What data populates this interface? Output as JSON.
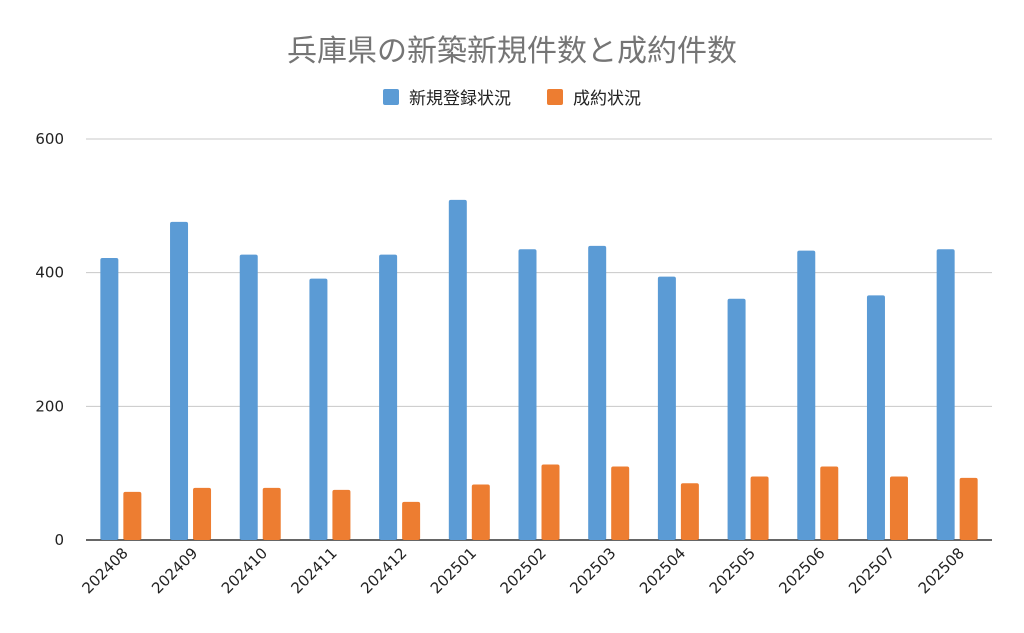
{
  "chart_data": {
    "type": "bar",
    "title": "兵庫県の新築新規件数と成約件数",
    "xlabel": "",
    "ylabel": "",
    "ylim": [
      0,
      600
    ],
    "yticks": [
      0,
      200,
      400,
      600
    ],
    "grid": true,
    "legend_position": "top",
    "categories": [
      "202408",
      "202409",
      "202410",
      "202411",
      "202412",
      "202501",
      "202502",
      "202503",
      "202504",
      "202505",
      "202506",
      "202507",
      "202508"
    ],
    "series": [
      {
        "name": "新規登録状況",
        "color": "#5b9bd5",
        "values": [
          422,
          476,
          427,
          391,
          427,
          509,
          435,
          440,
          394,
          361,
          433,
          366,
          435
        ]
      },
      {
        "name": "成約状況",
        "color": "#ed7d31",
        "values": [
          72,
          78,
          78,
          75,
          57,
          83,
          113,
          110,
          85,
          95,
          110,
          95,
          93
        ]
      }
    ]
  }
}
